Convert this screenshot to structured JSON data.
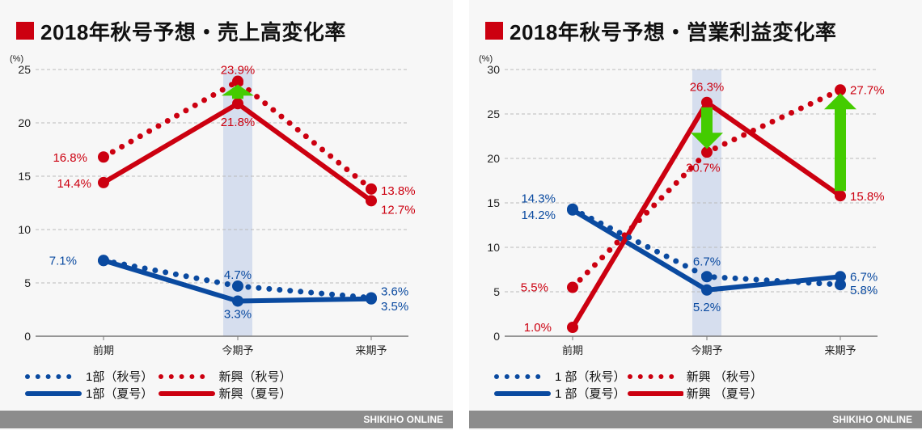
{
  "footer": "SHIKIHO ONLINE",
  "colors": {
    "blue": "#0a4aa0",
    "red": "#cc0010",
    "highlight": "#d6deee",
    "arrow": "#44cc00",
    "grid": "#bbbbbb"
  },
  "chart_data": [
    {
      "type": "line",
      "title": "2018年秋号予想・売上高変化率",
      "ylabel": "(%)",
      "ylim": [
        0,
        25
      ],
      "yticks": [
        0,
        5,
        10,
        15,
        20,
        25
      ],
      "grid": true,
      "legend_position": "bottom",
      "categories": [
        "前期",
        "今期予",
        "来期予"
      ],
      "highlight_category": "今期予",
      "series": [
        {
          "name": "1部（秋号）",
          "color": "#0a4aa0",
          "style": "dotted",
          "values": [
            7.1,
            4.7,
            3.6
          ],
          "labels": [
            "7.1%",
            "4.7%",
            "3.6%"
          ]
        },
        {
          "name": "1部（夏号）",
          "color": "#0a4aa0",
          "style": "solid",
          "values": [
            7.1,
            3.3,
            3.5
          ],
          "labels": [
            "",
            "3.3%",
            "3.5%"
          ]
        },
        {
          "name": "新興（秋号）",
          "color": "#cc0010",
          "style": "dotted",
          "values": [
            16.8,
            23.9,
            13.8
          ],
          "labels": [
            "16.8%",
            "23.9%",
            "13.8%"
          ]
        },
        {
          "name": "新興（夏号）",
          "color": "#cc0010",
          "style": "solid",
          "values": [
            14.4,
            21.8,
            12.7
          ],
          "labels": [
            "14.4%",
            "21.8%",
            "12.7%"
          ]
        }
      ],
      "arrows": [
        {
          "category": "今期予",
          "from": 21.8,
          "to": 23.9,
          "direction": "up"
        }
      ]
    },
    {
      "type": "line",
      "title": "2018年秋号予想・営業利益変化率",
      "ylabel": "(%)",
      "ylim": [
        0,
        30
      ],
      "yticks": [
        0,
        5,
        10,
        15,
        20,
        25,
        30
      ],
      "grid": true,
      "legend_position": "bottom",
      "categories": [
        "前期",
        "今期予",
        "来期予"
      ],
      "highlight_category": "今期予",
      "series": [
        {
          "name": "1 部（秋号）",
          "color": "#0a4aa0",
          "style": "dotted",
          "values": [
            14.3,
            6.7,
            5.8
          ],
          "labels": [
            "14.3%",
            "6.7%",
            "5.8%"
          ]
        },
        {
          "name": "1 部（夏号）",
          "color": "#0a4aa0",
          "style": "solid",
          "values": [
            14.2,
            5.2,
            6.7
          ],
          "labels": [
            "14.2%",
            "5.2%",
            "6.7%"
          ]
        },
        {
          "name": "新興 （秋号）",
          "color": "#cc0010",
          "style": "dotted",
          "values": [
            5.5,
            20.7,
            27.7
          ],
          "labels": [
            "5.5%",
            "20.7%",
            "27.7%"
          ]
        },
        {
          "name": "新興 （夏号）",
          "color": "#cc0010",
          "style": "solid",
          "values": [
            1.0,
            26.3,
            15.8
          ],
          "labels": [
            "1.0%",
            "26.3%",
            "15.8%"
          ]
        }
      ],
      "arrows": [
        {
          "category": "今期予",
          "from": 26.3,
          "to": 20.7,
          "direction": "down"
        },
        {
          "category": "来期予",
          "from": 15.8,
          "to": 27.7,
          "direction": "up"
        }
      ]
    }
  ]
}
